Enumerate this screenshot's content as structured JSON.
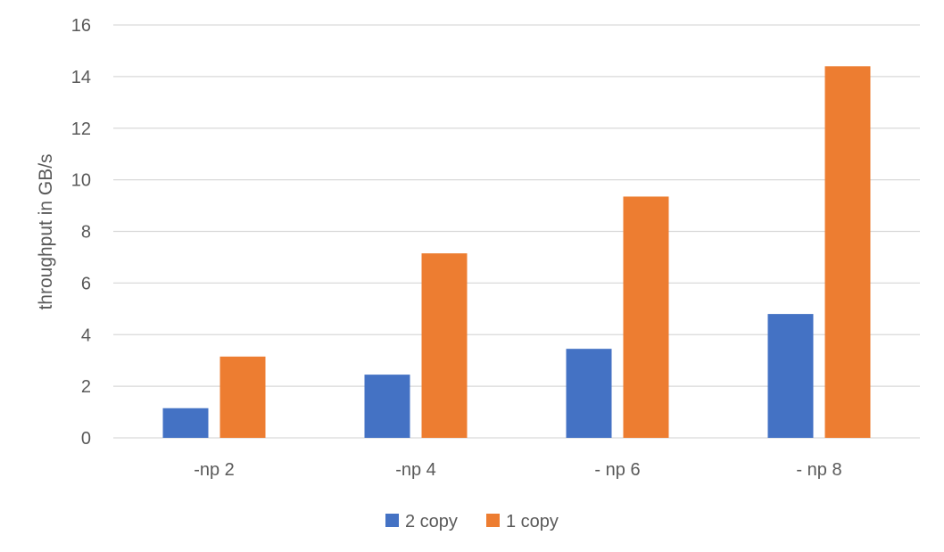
{
  "chart_data": {
    "type": "bar",
    "title": "",
    "xlabel": "",
    "ylabel": "throughput in GB/s",
    "categories": [
      "-np 2",
      "-np 4",
      "- np 6",
      "- np 8"
    ],
    "series": [
      {
        "name": "2 copy",
        "values": [
          1.15,
          2.45,
          3.45,
          4.8
        ],
        "color": "#4472C4"
      },
      {
        "name": "1 copy",
        "values": [
          3.15,
          7.15,
          9.35,
          14.4
        ],
        "color": "#ED7D31"
      }
    ],
    "ylim": [
      0,
      16
    ],
    "yticks": [
      "0",
      "2",
      "4",
      "6",
      "8",
      "10",
      "12",
      "14",
      "16"
    ],
    "grid": true,
    "legend_position": "bottom",
    "gridline_color": "#D9D9D9"
  }
}
